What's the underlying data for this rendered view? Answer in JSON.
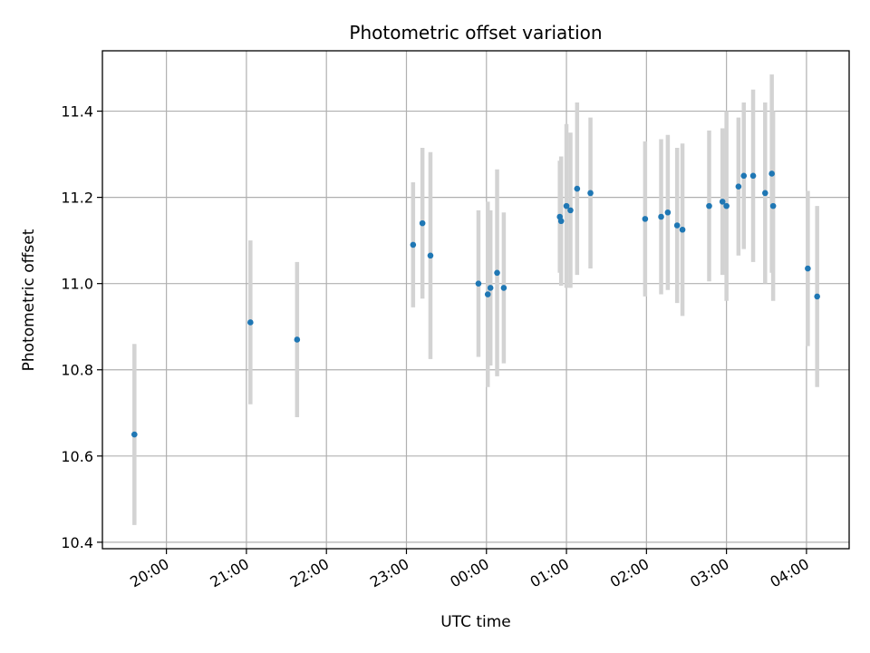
{
  "chart_data": {
    "type": "scatter",
    "title": "Photometric offset variation",
    "xlabel": "UTC time",
    "ylabel": "Photometric offset",
    "x_axis_type": "time",
    "xlim": [
      "19:12",
      "04:32"
    ],
    "ylim": [
      10.385,
      11.54
    ],
    "xticks": [
      "20:00",
      "21:00",
      "22:00",
      "23:00",
      "00:00",
      "01:00",
      "02:00",
      "03:00",
      "04:00"
    ],
    "yticks": [
      10.4,
      10.6,
      10.8,
      11.0,
      11.2,
      11.4
    ],
    "ytick_labels": [
      "10.4",
      "10.6",
      "10.8",
      "11.0",
      "11.2",
      "11.4"
    ],
    "grid": true,
    "marker_color": "#1f77b4",
    "errorbar_color": "#d3d3d3",
    "series": [
      {
        "points": [
          {
            "t": "19:36",
            "y": 10.65,
            "err": 0.21
          },
          {
            "t": "21:03",
            "y": 10.91,
            "err": 0.19
          },
          {
            "t": "21:38",
            "y": 10.87,
            "err": 0.18
          },
          {
            "t": "23:05",
            "y": 11.09,
            "err": 0.145
          },
          {
            "t": "23:12",
            "y": 11.14,
            "err": 0.175
          },
          {
            "t": "23:18",
            "y": 11.065,
            "err": 0.24
          },
          {
            "t": "23:54",
            "y": 11.0,
            "err": 0.17
          },
          {
            "t": "00:01",
            "y": 10.975,
            "err": 0.215
          },
          {
            "t": "00:03",
            "y": 10.99,
            "err": 0.18
          },
          {
            "t": "00:08",
            "y": 11.025,
            "err": 0.24
          },
          {
            "t": "00:13",
            "y": 10.99,
            "err": 0.175
          },
          {
            "t": "00:55",
            "y": 11.155,
            "err": 0.13
          },
          {
            "t": "00:56",
            "y": 11.145,
            "err": 0.15
          },
          {
            "t": "01:00",
            "y": 11.18,
            "err": 0.19
          },
          {
            "t": "01:03",
            "y": 11.17,
            "err": 0.18
          },
          {
            "t": "01:08",
            "y": 11.22,
            "err": 0.2
          },
          {
            "t": "01:18",
            "y": 11.21,
            "err": 0.175
          },
          {
            "t": "01:59",
            "y": 11.15,
            "err": 0.18
          },
          {
            "t": "02:11",
            "y": 11.155,
            "err": 0.18
          },
          {
            "t": "02:16",
            "y": 11.165,
            "err": 0.18
          },
          {
            "t": "02:23",
            "y": 11.135,
            "err": 0.18
          },
          {
            "t": "02:27",
            "y": 11.125,
            "err": 0.2
          },
          {
            "t": "02:47",
            "y": 11.18,
            "err": 0.175
          },
          {
            "t": "02:57",
            "y": 11.19,
            "err": 0.17
          },
          {
            "t": "03:00",
            "y": 11.18,
            "err": 0.22
          },
          {
            "t": "03:09",
            "y": 11.225,
            "err": 0.16
          },
          {
            "t": "03:13",
            "y": 11.25,
            "err": 0.17
          },
          {
            "t": "03:20",
            "y": 11.25,
            "err": 0.2
          },
          {
            "t": "03:29",
            "y": 11.21,
            "err": 0.21
          },
          {
            "t": "03:34",
            "y": 11.255,
            "err": 0.23
          },
          {
            "t": "03:35",
            "y": 11.18,
            "err": 0.22
          },
          {
            "t": "04:01",
            "y": 11.035,
            "err": 0.18
          },
          {
            "t": "04:08",
            "y": 10.97,
            "err": 0.21
          }
        ]
      }
    ]
  }
}
